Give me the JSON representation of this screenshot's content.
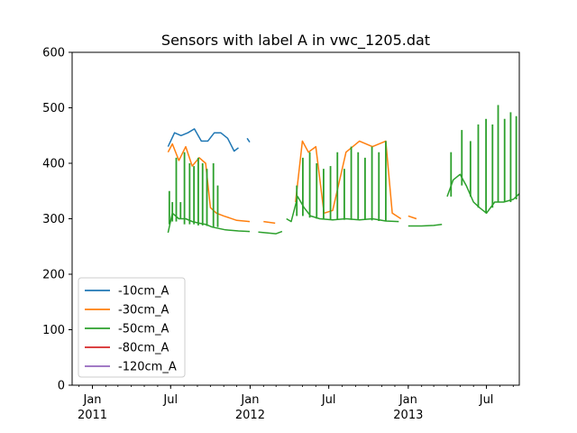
{
  "chart_data": {
    "type": "line",
    "title": "Sensors with label A in vwc_1205.dat",
    "xlabel": "",
    "ylabel": "",
    "xlim": [
      "2010-11-15",
      "2013-09-15"
    ],
    "ylim": [
      0,
      600
    ],
    "yticks": [
      0,
      100,
      200,
      300,
      400,
      500,
      600
    ],
    "xticks_major": [
      {
        "date": "2011-01-01",
        "label": "Jan",
        "sublabel": "2011"
      },
      {
        "date": "2011-07-01",
        "label": "Jul",
        "sublabel": ""
      },
      {
        "date": "2012-01-01",
        "label": "Jan",
        "sublabel": "2012"
      },
      {
        "date": "2012-07-01",
        "label": "Jul",
        "sublabel": ""
      },
      {
        "date": "2013-01-01",
        "label": "Jan",
        "sublabel": "2013"
      },
      {
        "date": "2013-07-01",
        "label": "Jul",
        "sublabel": ""
      }
    ],
    "grid": false,
    "legend_position": "lower-left",
    "series": [
      {
        "name": "-10cm_A",
        "color": "#1f77b4",
        "segments": [
          [
            [
              "2011-06-25",
              430
            ],
            [
              "2011-07-10",
              455
            ],
            [
              "2011-07-25",
              450
            ],
            [
              "2011-08-10",
              455
            ],
            [
              "2011-08-25",
              462
            ],
            [
              "2011-09-10",
              440
            ],
            [
              "2011-09-25",
              440
            ],
            [
              "2011-10-10",
              455
            ],
            [
              "2011-10-25",
              455
            ],
            [
              "2011-11-10",
              445
            ],
            [
              "2011-11-25",
              422
            ],
            [
              "2011-12-05",
              428
            ]
          ],
          [
            [
              "2011-12-25",
              445
            ],
            [
              "2011-12-31",
              438
            ]
          ]
        ]
      },
      {
        "name": "-30cm_A",
        "color": "#ff7f0e",
        "segments": [
          [
            [
              "2011-06-25",
              420
            ],
            [
              "2011-07-05",
              435
            ],
            [
              "2011-07-20",
              405
            ],
            [
              "2011-08-05",
              430
            ],
            [
              "2011-08-20",
              395
            ],
            [
              "2011-09-05",
              410
            ],
            [
              "2011-09-20",
              400
            ],
            [
              "2011-10-01",
              320
            ],
            [
              "2011-10-15",
              310
            ],
            [
              "2011-11-01",
              305
            ],
            [
              "2011-12-01",
              297
            ],
            [
              "2011-12-31",
              295
            ]
          ],
          [
            [
              "2012-02-01",
              295
            ],
            [
              "2012-02-28",
              292
            ]
          ],
          [
            [
              "2012-04-15",
              330
            ],
            [
              "2012-05-01",
              440
            ],
            [
              "2012-05-15",
              420
            ],
            [
              "2012-06-01",
              430
            ],
            [
              "2012-06-20",
              310
            ],
            [
              "2012-07-10",
              315
            ],
            [
              "2012-08-10",
              420
            ],
            [
              "2012-09-10",
              440
            ],
            [
              "2012-10-10",
              430
            ],
            [
              "2012-11-10",
              440
            ],
            [
              "2012-11-25",
              310
            ],
            [
              "2012-12-15",
              300
            ]
          ],
          [
            [
              "2013-01-01",
              305
            ],
            [
              "2013-01-20",
              300
            ]
          ]
        ]
      },
      {
        "name": "-50cm_A",
        "color": "#2ca02c",
        "segments": [
          [
            [
              "2011-06-25",
              275
            ],
            [
              "2011-07-05",
              310
            ],
            [
              "2011-07-20",
              300
            ],
            [
              "2011-08-05",
              300
            ],
            [
              "2011-08-20",
              295
            ],
            [
              "2011-09-05",
              292
            ],
            [
              "2011-09-20",
              290
            ],
            [
              "2011-10-05",
              285
            ],
            [
              "2011-11-05",
              280
            ],
            [
              "2011-12-05",
              278
            ],
            [
              "2011-12-31",
              277
            ]
          ],
          [
            [
              "2012-01-20",
              276
            ],
            [
              "2012-03-01",
              273
            ],
            [
              "2012-03-15",
              277
            ]
          ],
          [
            [
              "2012-03-25",
              300
            ],
            [
              "2012-04-05",
              295
            ],
            [
              "2012-04-20",
              340
            ],
            [
              "2012-05-05",
              320
            ],
            [
              "2012-05-20",
              305
            ],
            [
              "2012-06-10",
              300
            ],
            [
              "2012-07-10",
              298
            ],
            [
              "2012-08-10",
              300
            ],
            [
              "2012-09-10",
              298
            ],
            [
              "2012-10-10",
              300
            ],
            [
              "2012-11-10",
              296
            ],
            [
              "2012-12-10",
              295
            ]
          ],
          [
            [
              "2013-01-01",
              287
            ],
            [
              "2013-02-01",
              287
            ],
            [
              "2013-03-01",
              288
            ],
            [
              "2013-03-20",
              290
            ]
          ],
          [
            [
              "2013-04-01",
              340
            ],
            [
              "2013-04-15",
              370
            ],
            [
              "2013-05-01",
              380
            ],
            [
              "2013-05-15",
              360
            ],
            [
              "2013-06-01",
              330
            ],
            [
              "2013-06-15",
              320
            ],
            [
              "2013-07-01",
              310
            ],
            [
              "2013-07-20",
              330
            ],
            [
              "2013-08-10",
              330
            ],
            [
              "2013-09-01",
              335
            ],
            [
              "2013-09-15",
              345
            ]
          ]
        ]
      },
      {
        "name": "-80cm_A",
        "color": "#d62728",
        "segments": []
      },
      {
        "name": "-120cm_A",
        "color": "#9467bd",
        "segments": []
      }
    ],
    "spikes": [
      {
        "series": "-50cm_A",
        "date": "2011-06-28",
        "base": 290,
        "peak": 350
      },
      {
        "series": "-50cm_A",
        "date": "2011-07-05",
        "base": 295,
        "peak": 330
      },
      {
        "series": "-50cm_A",
        "date": "2011-07-14",
        "base": 295,
        "peak": 410
      },
      {
        "series": "-50cm_A",
        "date": "2011-07-24",
        "base": 300,
        "peak": 330
      },
      {
        "series": "-50cm_A",
        "date": "2011-08-02",
        "base": 290,
        "peak": 420
      },
      {
        "series": "-50cm_A",
        "date": "2011-08-14",
        "base": 290,
        "peak": 400
      },
      {
        "series": "-50cm_A",
        "date": "2011-08-24",
        "base": 290,
        "peak": 395
      },
      {
        "series": "-50cm_A",
        "date": "2011-09-03",
        "base": 288,
        "peak": 410
      },
      {
        "series": "-50cm_A",
        "date": "2011-09-13",
        "base": 288,
        "peak": 400
      },
      {
        "series": "-50cm_A",
        "date": "2011-09-23",
        "base": 287,
        "peak": 390
      },
      {
        "series": "-50cm_A",
        "date": "2011-10-08",
        "base": 285,
        "peak": 400
      },
      {
        "series": "-50cm_A",
        "date": "2011-10-18",
        "base": 285,
        "peak": 360
      },
      {
        "series": "-50cm_A",
        "date": "2012-04-18",
        "base": 305,
        "peak": 360
      },
      {
        "series": "-50cm_A",
        "date": "2012-05-02",
        "base": 305,
        "peak": 410
      },
      {
        "series": "-50cm_A",
        "date": "2012-05-18",
        "base": 302,
        "peak": 420
      },
      {
        "series": "-50cm_A",
        "date": "2012-06-03",
        "base": 300,
        "peak": 400
      },
      {
        "series": "-50cm_A",
        "date": "2012-06-19",
        "base": 300,
        "peak": 390
      },
      {
        "series": "-50cm_A",
        "date": "2012-07-05",
        "base": 298,
        "peak": 395
      },
      {
        "series": "-50cm_A",
        "date": "2012-07-21",
        "base": 298,
        "peak": 420
      },
      {
        "series": "-50cm_A",
        "date": "2012-08-06",
        "base": 298,
        "peak": 390
      },
      {
        "series": "-50cm_A",
        "date": "2012-08-22",
        "base": 298,
        "peak": 430
      },
      {
        "series": "-50cm_A",
        "date": "2012-09-07",
        "base": 298,
        "peak": 420
      },
      {
        "series": "-50cm_A",
        "date": "2012-09-23",
        "base": 298,
        "peak": 410
      },
      {
        "series": "-50cm_A",
        "date": "2012-10-09",
        "base": 297,
        "peak": 430
      },
      {
        "series": "-50cm_A",
        "date": "2012-10-25",
        "base": 296,
        "peak": 420
      },
      {
        "series": "-50cm_A",
        "date": "2012-11-10",
        "base": 296,
        "peak": 440
      },
      {
        "series": "-50cm_A",
        "date": "2013-04-10",
        "base": 340,
        "peak": 420
      },
      {
        "series": "-50cm_A",
        "date": "2013-05-05",
        "base": 360,
        "peak": 460
      },
      {
        "series": "-50cm_A",
        "date": "2013-05-25",
        "base": 340,
        "peak": 440
      },
      {
        "series": "-50cm_A",
        "date": "2013-06-12",
        "base": 320,
        "peak": 470
      },
      {
        "series": "-50cm_A",
        "date": "2013-06-30",
        "base": 310,
        "peak": 480
      },
      {
        "series": "-50cm_A",
        "date": "2013-07-15",
        "base": 320,
        "peak": 470
      },
      {
        "series": "-50cm_A",
        "date": "2013-07-28",
        "base": 330,
        "peak": 505
      },
      {
        "series": "-50cm_A",
        "date": "2013-08-12",
        "base": 330,
        "peak": 480
      },
      {
        "series": "-50cm_A",
        "date": "2013-08-26",
        "base": 330,
        "peak": 492
      },
      {
        "series": "-50cm_A",
        "date": "2013-09-08",
        "base": 335,
        "peak": 485
      }
    ]
  }
}
